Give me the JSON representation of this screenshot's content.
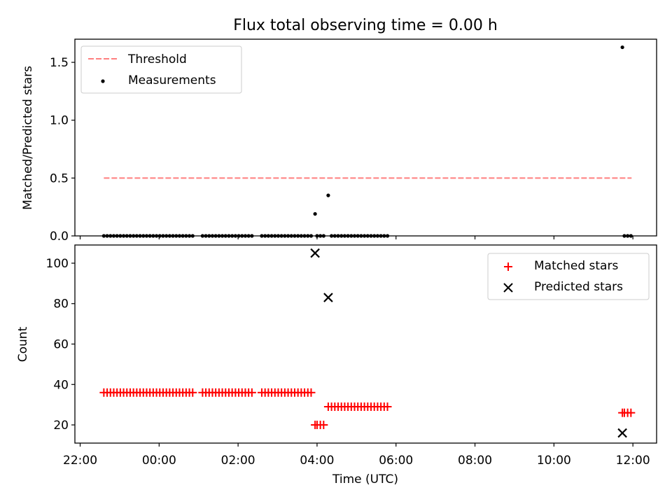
{
  "chart_data": [
    {
      "type": "scatter",
      "title": "Flux total observing time = 0.00 h",
      "xlabel": "",
      "ylabel": "Matched/Predicted stars",
      "xlim": [
        "21:52",
        "12:36"
      ],
      "ylim": [
        0,
        1.7
      ],
      "yticks": [
        0.0,
        0.5,
        1.0,
        1.5
      ],
      "ytick_labels": [
        "0.0",
        "0.5",
        "1.0",
        "1.5"
      ],
      "legend": {
        "position": "top-left",
        "entries": [
          "Threshold",
          "Measurements"
        ]
      },
      "threshold": {
        "name": "Threshold",
        "value": 0.5,
        "x_range": [
          "22:36",
          "11:58"
        ],
        "color": "#ff7f7f",
        "style": "dashed"
      },
      "series": [
        {
          "name": "Measurements",
          "color": "#000000",
          "marker": "dot",
          "points": [
            [
              "22:36",
              0
            ],
            [
              "22:41",
              0
            ],
            [
              "22:46",
              0
            ],
            [
              "22:51",
              0
            ],
            [
              "22:56",
              0
            ],
            [
              "23:01",
              0
            ],
            [
              "23:06",
              0
            ],
            [
              "23:11",
              0
            ],
            [
              "23:16",
              0
            ],
            [
              "23:21",
              0
            ],
            [
              "23:26",
              0
            ],
            [
              "23:31",
              0
            ],
            [
              "23:36",
              0
            ],
            [
              "23:41",
              0
            ],
            [
              "23:46",
              0
            ],
            [
              "23:51",
              0
            ],
            [
              "23:56",
              0
            ],
            [
              "00:01",
              0
            ],
            [
              "00:06",
              0
            ],
            [
              "00:11",
              0
            ],
            [
              "00:16",
              0
            ],
            [
              "00:21",
              0
            ],
            [
              "00:26",
              0
            ],
            [
              "00:31",
              0
            ],
            [
              "00:36",
              0
            ],
            [
              "00:41",
              0
            ],
            [
              "00:46",
              0
            ],
            [
              "00:51",
              0
            ],
            [
              "01:06",
              0
            ],
            [
              "01:11",
              0
            ],
            [
              "01:16",
              0
            ],
            [
              "01:21",
              0
            ],
            [
              "01:26",
              0
            ],
            [
              "01:31",
              0
            ],
            [
              "01:36",
              0
            ],
            [
              "01:41",
              0
            ],
            [
              "01:46",
              0
            ],
            [
              "01:51",
              0
            ],
            [
              "01:56",
              0
            ],
            [
              "02:01",
              0
            ],
            [
              "02:06",
              0
            ],
            [
              "02:11",
              0
            ],
            [
              "02:16",
              0
            ],
            [
              "02:21",
              0
            ],
            [
              "02:36",
              0
            ],
            [
              "02:41",
              0
            ],
            [
              "02:46",
              0
            ],
            [
              "02:51",
              0
            ],
            [
              "02:56",
              0
            ],
            [
              "03:01",
              0
            ],
            [
              "03:06",
              0
            ],
            [
              "03:11",
              0
            ],
            [
              "03:16",
              0
            ],
            [
              "03:21",
              0
            ],
            [
              "03:26",
              0
            ],
            [
              "03:31",
              0
            ],
            [
              "03:36",
              0
            ],
            [
              "03:41",
              0
            ],
            [
              "03:46",
              0
            ],
            [
              "03:51",
              0
            ],
            [
              "03:57",
              0.19
            ],
            [
              "04:00",
              0
            ],
            [
              "04:05",
              0
            ],
            [
              "04:10",
              0
            ],
            [
              "04:17",
              0.35
            ],
            [
              "04:22",
              0
            ],
            [
              "04:27",
              0
            ],
            [
              "04:32",
              0
            ],
            [
              "04:37",
              0
            ],
            [
              "04:42",
              0
            ],
            [
              "04:47",
              0
            ],
            [
              "04:52",
              0
            ],
            [
              "04:57",
              0
            ],
            [
              "05:02",
              0
            ],
            [
              "05:07",
              0
            ],
            [
              "05:12",
              0
            ],
            [
              "05:17",
              0
            ],
            [
              "05:22",
              0
            ],
            [
              "05:27",
              0
            ],
            [
              "05:32",
              0
            ],
            [
              "05:37",
              0
            ],
            [
              "05:42",
              0
            ],
            [
              "05:47",
              0
            ],
            [
              "11:44",
              1.63
            ],
            [
              "11:47",
              0
            ],
            [
              "11:52",
              0
            ],
            [
              "11:57",
              0
            ]
          ]
        }
      ]
    },
    {
      "type": "scatter",
      "title": "",
      "xlabel": "Time (UTC)",
      "ylabel": "Count",
      "xlim": [
        "21:52",
        "12:36"
      ],
      "xticks": [
        "22:00",
        "00:00",
        "02:00",
        "04:00",
        "06:00",
        "08:00",
        "10:00",
        "12:00"
      ],
      "ylim": [
        11,
        109
      ],
      "yticks": [
        20,
        40,
        60,
        80,
        100
      ],
      "ytick_labels": [
        "20",
        "40",
        "60",
        "80",
        "100"
      ],
      "legend": {
        "position": "top-right",
        "entries": [
          "Matched stars",
          "Predicted stars"
        ]
      },
      "series": [
        {
          "name": "Matched stars",
          "color": "#ff0000",
          "marker": "plus",
          "points": [
            [
              "22:36",
              36
            ],
            [
              "22:41",
              36
            ],
            [
              "22:46",
              36
            ],
            [
              "22:51",
              36
            ],
            [
              "22:56",
              36
            ],
            [
              "23:01",
              36
            ],
            [
              "23:06",
              36
            ],
            [
              "23:11",
              36
            ],
            [
              "23:16",
              36
            ],
            [
              "23:21",
              36
            ],
            [
              "23:26",
              36
            ],
            [
              "23:31",
              36
            ],
            [
              "23:36",
              36
            ],
            [
              "23:41",
              36
            ],
            [
              "23:46",
              36
            ],
            [
              "23:51",
              36
            ],
            [
              "23:56",
              36
            ],
            [
              "00:01",
              36
            ],
            [
              "00:06",
              36
            ],
            [
              "00:11",
              36
            ],
            [
              "00:16",
              36
            ],
            [
              "00:21",
              36
            ],
            [
              "00:26",
              36
            ],
            [
              "00:31",
              36
            ],
            [
              "00:36",
              36
            ],
            [
              "00:41",
              36
            ],
            [
              "00:46",
              36
            ],
            [
              "00:51",
              36
            ],
            [
              "01:06",
              36
            ],
            [
              "01:11",
              36
            ],
            [
              "01:16",
              36
            ],
            [
              "01:21",
              36
            ],
            [
              "01:26",
              36
            ],
            [
              "01:31",
              36
            ],
            [
              "01:36",
              36
            ],
            [
              "01:41",
              36
            ],
            [
              "01:46",
              36
            ],
            [
              "01:51",
              36
            ],
            [
              "01:56",
              36
            ],
            [
              "02:01",
              36
            ],
            [
              "02:06",
              36
            ],
            [
              "02:11",
              36
            ],
            [
              "02:16",
              36
            ],
            [
              "02:21",
              36
            ],
            [
              "02:36",
              36
            ],
            [
              "02:41",
              36
            ],
            [
              "02:46",
              36
            ],
            [
              "02:51",
              36
            ],
            [
              "02:56",
              36
            ],
            [
              "03:01",
              36
            ],
            [
              "03:06",
              36
            ],
            [
              "03:11",
              36
            ],
            [
              "03:16",
              36
            ],
            [
              "03:21",
              36
            ],
            [
              "03:26",
              36
            ],
            [
              "03:31",
              36
            ],
            [
              "03:36",
              36
            ],
            [
              "03:41",
              36
            ],
            [
              "03:46",
              36
            ],
            [
              "03:51",
              36
            ],
            [
              "03:57",
              20
            ],
            [
              "04:00",
              20
            ],
            [
              "04:05",
              20
            ],
            [
              "04:10",
              20
            ],
            [
              "04:17",
              29
            ],
            [
              "04:22",
              29
            ],
            [
              "04:27",
              29
            ],
            [
              "04:32",
              29
            ],
            [
              "04:37",
              29
            ],
            [
              "04:42",
              29
            ],
            [
              "04:47",
              29
            ],
            [
              "04:52",
              29
            ],
            [
              "04:57",
              29
            ],
            [
              "05:02",
              29
            ],
            [
              "05:07",
              29
            ],
            [
              "05:12",
              29
            ],
            [
              "05:17",
              29
            ],
            [
              "05:22",
              29
            ],
            [
              "05:27",
              29
            ],
            [
              "05:32",
              29
            ],
            [
              "05:37",
              29
            ],
            [
              "05:42",
              29
            ],
            [
              "05:47",
              29
            ],
            [
              "11:44",
              26
            ],
            [
              "11:47",
              26
            ],
            [
              "11:52",
              26
            ],
            [
              "11:57",
              26
            ]
          ]
        },
        {
          "name": "Predicted stars",
          "color": "#000000",
          "marker": "x",
          "points": [
            [
              "03:57",
              105
            ],
            [
              "04:17",
              83
            ],
            [
              "11:44",
              16
            ]
          ]
        }
      ]
    }
  ]
}
